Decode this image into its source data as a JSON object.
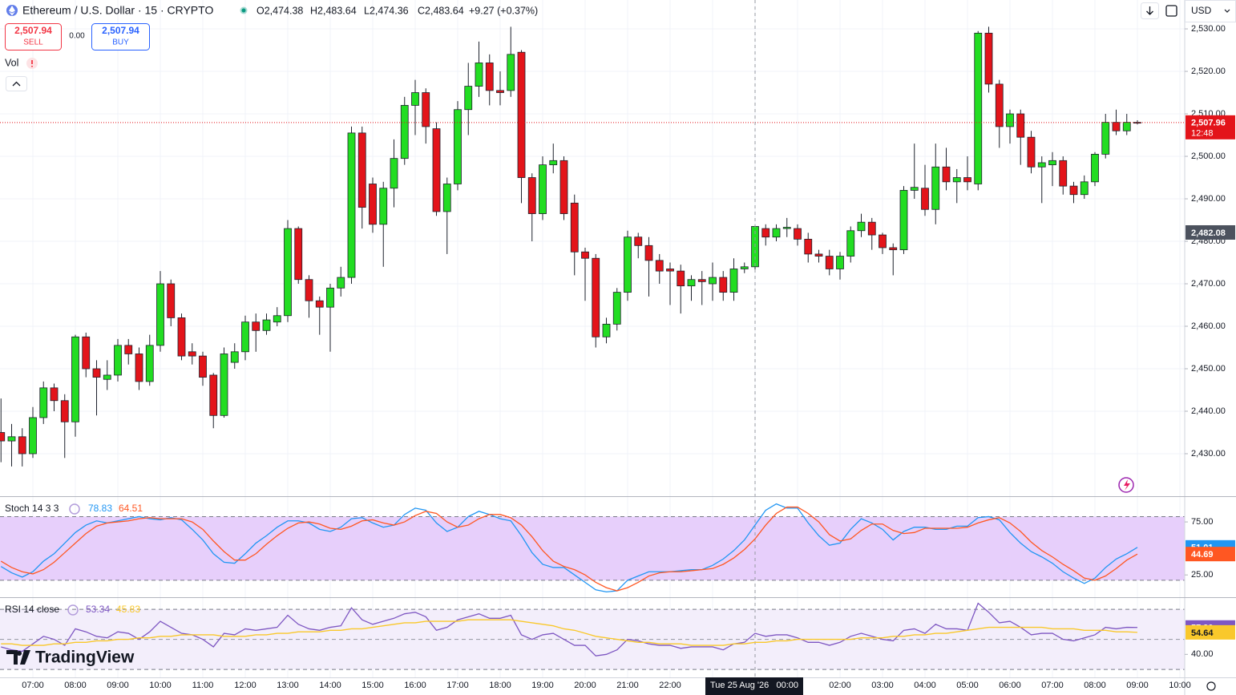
{
  "header": {
    "symbol": "Ethereum / U.S. Dollar · 15 · CRYPTO",
    "open": "O2,474.38",
    "high": "H2,483.64",
    "low": "L2,474.36",
    "close": "C2,483.64",
    "change": "+9.27 (+0.37%)",
    "sell_price": "2,507.94",
    "sell": "SELL",
    "spread": "0.00",
    "buy_price": "2,507.94",
    "buy": "BUY",
    "volume": "Vol",
    "currency": "USD",
    "brand": "TradingView"
  },
  "chart_data": [
    {
      "type": "candlestick",
      "up_color": "#22dd22",
      "down_color": "#e3141a",
      "grid": true,
      "categories": [
        null,
        null,
        null,
        "07:00",
        null,
        null,
        null,
        "08:00",
        null,
        null,
        null,
        "09:00",
        null,
        null,
        null,
        "10:00",
        null,
        null,
        null,
        "11:00",
        null,
        null,
        null,
        "12:00",
        null,
        null,
        null,
        "13:00",
        null,
        null,
        null,
        "14:00",
        null,
        null,
        null,
        "15:00",
        null,
        null,
        null,
        "16:00",
        null,
        null,
        null,
        "17:00",
        null,
        null,
        null,
        "18:00",
        null,
        null,
        null,
        "19:00",
        null,
        null,
        null,
        "20:00",
        null,
        null,
        null,
        "21:00",
        null,
        null,
        null,
        "22:00",
        null,
        null,
        null,
        null,
        null,
        null,
        null,
        "00:00",
        null,
        null,
        null,
        null,
        null,
        null,
        null,
        "02:00",
        null,
        null,
        null,
        "03:00",
        null,
        null,
        null,
        "04:00",
        null,
        null,
        null,
        "05:00",
        null,
        null,
        null,
        "06:00",
        null,
        null,
        null,
        "07:00",
        null,
        null,
        null,
        "08:00",
        null,
        null,
        null,
        "09:00",
        null,
        null,
        null,
        "10:00"
      ],
      "open": [
        2435,
        2433,
        2434,
        2430,
        2438.5,
        2445.5,
        2442.5,
        2437.5,
        2457.5,
        2450,
        2447.5,
        2448.5,
        2455.5,
        2453.5,
        2447,
        2455.5,
        2470,
        2462,
        2454,
        2453,
        2448.5,
        2439,
        2451.5,
        2454,
        2461,
        2459,
        2461,
        2462.5,
        2483,
        2471,
        2466,
        2464.5,
        2469,
        2471.5,
        2505.5,
        2493.5,
        2484,
        2492.5,
        2499.5,
        2512,
        2515,
        2506.5,
        2487,
        2493.5,
        2511,
        2516.5,
        2522,
        2515.5,
        2515.5,
        2524.5,
        2495,
        2486.5,
        2498,
        2499,
        2489,
        2477.5,
        2476,
        2457.5,
        2460.5,
        2468,
        2481,
        2479,
        2475.5,
        2473.5,
        2473,
        2469.5,
        2471,
        2470,
        2471.5,
        2468,
        2473.5,
        2474,
        2483,
        2481,
        2483,
        2483,
        2480.5,
        2477,
        2476.5,
        2473.5,
        2476.5,
        2482.5,
        2484.5,
        2481.5,
        2478.5,
        2478,
        2492,
        2492.5,
        2487.5,
        2497.5,
        2494,
        2495,
        2493.5,
        2529,
        2517,
        2507,
        2510,
        2504.5,
        2497.5,
        2498,
        2499,
        2493,
        2491,
        2494,
        2500.5,
        2508,
        2506,
        2508,
        null,
        null,
        null,
        null
      ],
      "high": [
        2443,
        2437,
        2436,
        2441,
        2447,
        2446.5,
        2444,
        2458,
        2458.5,
        2452,
        2452,
        2457,
        2457,
        2455,
        2458,
        2473,
        2471,
        2463,
        2456,
        2454,
        2449,
        2455,
        2456,
        2462.5,
        2463,
        2463,
        2464.5,
        2485,
        2483.5,
        2472,
        2467,
        2470,
        2474,
        2507,
        2507,
        2495,
        2494,
        2504,
        2514,
        2518,
        2516,
        2508,
        2495,
        2513,
        2522,
        2527,
        2524,
        2520,
        2530.5,
        2525,
        2496,
        2500,
        2503,
        2500,
        2491,
        2478.5,
        2477,
        2462,
        2469,
        2482.5,
        2482,
        2481,
        2477,
        2475,
        2474.5,
        2472,
        2473,
        2475,
        2473,
        2476,
        2475,
        2484,
        2484,
        2484,
        2485.5,
        2484,
        2482,
        2478,
        2478,
        2477.5,
        2483.5,
        2486.5,
        2485.5,
        2482,
        2479.5,
        2493,
        2503,
        2498,
        2503,
        2502,
        2497,
        2500,
        2529.5,
        2530.5,
        2518,
        2511,
        2511,
        2506,
        2500,
        2501,
        2500,
        2494,
        2495.5,
        2501,
        2510,
        2511,
        2510,
        2508.5,
        null,
        null,
        null,
        null
      ],
      "low": [
        2428,
        2427,
        2427,
        2429,
        2437,
        2440,
        2429,
        2434,
        2448,
        2439,
        2445,
        2447,
        2451,
        2445,
        2446,
        2454,
        2460,
        2452,
        2451,
        2446,
        2436,
        2438.5,
        2450,
        2452,
        2454,
        2458,
        2460,
        2461,
        2470,
        2462,
        2458,
        2454,
        2467,
        2470,
        2483,
        2482,
        2474,
        2488,
        2498,
        2505,
        2503,
        2486,
        2477,
        2492,
        2505,
        2514,
        2512,
        2512,
        2514,
        2489,
        2480,
        2485,
        2496,
        2485,
        2472,
        2466,
        2455,
        2456,
        2459,
        2466,
        2476,
        2467,
        2470,
        2465,
        2463,
        2466,
        2465,
        2466,
        2466,
        2466,
        2472.5,
        2473,
        2479,
        2480,
        2481,
        2479,
        2475,
        2475,
        2472,
        2471,
        2475,
        2481,
        2478,
        2477,
        2472,
        2477,
        2490,
        2486,
        2484,
        2492,
        2489,
        2492,
        2492,
        2515,
        2502,
        2503,
        2498,
        2496,
        2489,
        2493,
        2491,
        2489,
        2490,
        2493,
        2499.5,
        2505,
        2505,
        2507.5,
        null,
        null,
        null,
        null
      ],
      "close": [
        2433,
        2434,
        2430,
        2438.5,
        2445.5,
        2442.5,
        2437.5,
        2457.5,
        2450,
        2448,
        2448.5,
        2455.5,
        2453.5,
        2447,
        2455.5,
        2470,
        2462,
        2453,
        2453,
        2448,
        2439,
        2453.5,
        2454,
        2461,
        2459,
        2461.5,
        2462.5,
        2483,
        2471,
        2466,
        2464.5,
        2469,
        2471.5,
        2505.5,
        2488,
        2484,
        2492.5,
        2499.5,
        2512,
        2515,
        2507,
        2487,
        2493.5,
        2511,
        2516.5,
        2522,
        2515.5,
        2515,
        2524,
        2495,
        2486.5,
        2498,
        2499,
        2486.5,
        2477.5,
        2476,
        2457.5,
        2460.5,
        2468,
        2481,
        2479,
        2475.5,
        2473,
        2473,
        2469.5,
        2471,
        2470.5,
        2471.5,
        2468,
        2473.5,
        2474,
        2483.5,
        2481,
        2483,
        2483.3,
        2480.5,
        2477,
        2476.5,
        2473.5,
        2476.5,
        2482.5,
        2484.5,
        2481.5,
        2478.5,
        2478,
        2492,
        2492.7,
        2487.5,
        2497.5,
        2494,
        2495,
        2494,
        2529,
        2517,
        2507,
        2510,
        2504.5,
        2497.5,
        2498.5,
        2499,
        2493,
        2491,
        2494,
        2500.5,
        2508,
        2506,
        2508,
        2507.96,
        null,
        null,
        null,
        null
      ],
      "ylim": [
        2420,
        2536.8
      ],
      "yticks": [
        {
          "value": 2430,
          "label": "2,430.00"
        },
        {
          "value": 2440,
          "label": "2,440.00"
        },
        {
          "value": 2450,
          "label": "2,450.00"
        },
        {
          "value": 2460,
          "label": "2,460.00"
        },
        {
          "value": 2470,
          "label": "2,470.00"
        },
        {
          "value": 2480,
          "label": "2,480.00"
        },
        {
          "value": 2490,
          "label": "2,490.00"
        },
        {
          "value": 2500,
          "label": "2,500.00"
        },
        {
          "value": 2510,
          "label": "2,510.00"
        },
        {
          "value": 2520,
          "label": "2,520.00"
        },
        {
          "value": 2530,
          "label": "2,530.00"
        }
      ],
      "last_price_label": "2,507.96",
      "countdown": "12:48",
      "crosshair": {
        "price": 2482.08,
        "price_label": "2,482.08",
        "date": "Tue 25 Aug '26"
      }
    },
    {
      "type": "line",
      "title": "Stoch 14 3 3",
      "ylim": [
        4,
        98.5
      ],
      "band": [
        20,
        80
      ],
      "band_color": "#e7cffb",
      "yticks": [
        {
          "value": 75,
          "label": "75.00"
        },
        {
          "value": 25,
          "label": "25.00"
        }
      ],
      "series": [
        {
          "color": "#2196f3",
          "legend_value": 78.83,
          "last_label": "51.01",
          "values": [
            33,
            27,
            23,
            28,
            38,
            45,
            55,
            65,
            72,
            76,
            74,
            76,
            78,
            80,
            78,
            77,
            79,
            77,
            68,
            58,
            45,
            37,
            36,
            45,
            55,
            62,
            70,
            76,
            76,
            74,
            68,
            66,
            70,
            78,
            79,
            74,
            70,
            72,
            82,
            88,
            86,
            74,
            66,
            70,
            80,
            85,
            82,
            78,
            76,
            62,
            46,
            35,
            32,
            32,
            25,
            18,
            11,
            9,
            10,
            20,
            24,
            28,
            28,
            28,
            29,
            30,
            30,
            34,
            40,
            48,
            58,
            72,
            86,
            92,
            88,
            88,
            74,
            62,
            53,
            55,
            68,
            78,
            74,
            68,
            58,
            66,
            70,
            70,
            68,
            68,
            71,
            71,
            79,
            80,
            77,
            65,
            55,
            47,
            42,
            36,
            28,
            22,
            17,
            22,
            32,
            40,
            45,
            51.01,
            null,
            null,
            null,
            null
          ]
        },
        {
          "color": "#ff5722",
          "legend_value": 64.51,
          "last_label": "44.69",
          "values": [
            38,
            32,
            28,
            26,
            30,
            37,
            46,
            55,
            64,
            71,
            74,
            75,
            76,
            78,
            79,
            78,
            78,
            78,
            75,
            68,
            57,
            47,
            39,
            39,
            45,
            54,
            62,
            69,
            74,
            75,
            73,
            69,
            68,
            71,
            76,
            77,
            74,
            72,
            75,
            81,
            85,
            83,
            75,
            70,
            72,
            78,
            82,
            82,
            79,
            72,
            61,
            48,
            38,
            33,
            30,
            25,
            18,
            13,
            10,
            13,
            18,
            24,
            27,
            28,
            28,
            29,
            30,
            31,
            35,
            41,
            49,
            59,
            72,
            83,
            89,
            89,
            83,
            75,
            63,
            57,
            59,
            67,
            73,
            73,
            67,
            64,
            65,
            69,
            69,
            69,
            69,
            70,
            74,
            77,
            79,
            74,
            66,
            56,
            48,
            42,
            35,
            29,
            22,
            20,
            24,
            31,
            39,
            44.69,
            null,
            null,
            null,
            null
          ]
        }
      ]
    },
    {
      "type": "line",
      "title": "RSI 14 close",
      "ylim": [
        24.7,
        77.5
      ],
      "band": [
        30,
        70
      ],
      "midline": 50,
      "band_color": "#f3eefb",
      "yticks": [
        {
          "value": 40,
          "label": "40.00"
        }
      ],
      "series": [
        {
          "color": "#7e57c2",
          "legend_value": 53.34,
          "last_label": "57.90",
          "values": [
            45,
            43,
            42,
            47,
            52,
            50,
            46,
            57,
            55,
            52,
            51,
            55,
            54,
            50,
            55,
            62,
            58,
            54,
            53,
            50,
            45,
            54,
            53,
            57,
            56,
            57,
            58,
            66,
            60,
            57,
            56,
            58,
            59,
            71,
            63,
            60,
            62,
            64,
            67,
            68,
            65,
            56,
            58,
            63,
            65,
            67,
            64,
            64,
            66,
            53,
            50,
            53,
            54,
            50,
            46,
            46,
            39,
            40,
            43,
            50,
            49,
            47,
            46,
            46,
            44,
            45,
            45,
            45,
            43,
            47,
            48,
            54,
            52,
            53,
            53,
            51,
            48,
            48,
            46,
            48,
            52,
            54,
            52,
            50,
            49,
            56,
            57,
            54,
            60,
            57,
            57,
            56,
            74,
            68,
            61,
            62,
            58,
            53,
            54,
            54,
            50,
            49,
            51,
            53,
            58,
            57,
            58,
            57.9,
            null,
            null,
            null,
            null
          ]
        },
        {
          "color": "#f9c82b",
          "legend_value": 45.83,
          "last_label": "54.64",
          "values": [
            47,
            47,
            46,
            46,
            46,
            47,
            47,
            48,
            48,
            49,
            49,
            50,
            50,
            51,
            51,
            52,
            52,
            53,
            53,
            53,
            53,
            52,
            52,
            52,
            53,
            53,
            54,
            54,
            55,
            55,
            55,
            56,
            56,
            57,
            57,
            58,
            59,
            60,
            61,
            61,
            62,
            62,
            62,
            62,
            63,
            63,
            63,
            63,
            63,
            62,
            61,
            60,
            59,
            57,
            56,
            54,
            52,
            51,
            50,
            49,
            48,
            48,
            47,
            47,
            47,
            46,
            46,
            46,
            46,
            47,
            47,
            48,
            48,
            49,
            49,
            50,
            50,
            50,
            50,
            50,
            50,
            51,
            51,
            51,
            52,
            52,
            53,
            53,
            54,
            54,
            55,
            56,
            57,
            58,
            58,
            58,
            58,
            58,
            58,
            57,
            57,
            57,
            56,
            56,
            56,
            55,
            55,
            54.64,
            null,
            null,
            null,
            null
          ]
        }
      ]
    }
  ]
}
